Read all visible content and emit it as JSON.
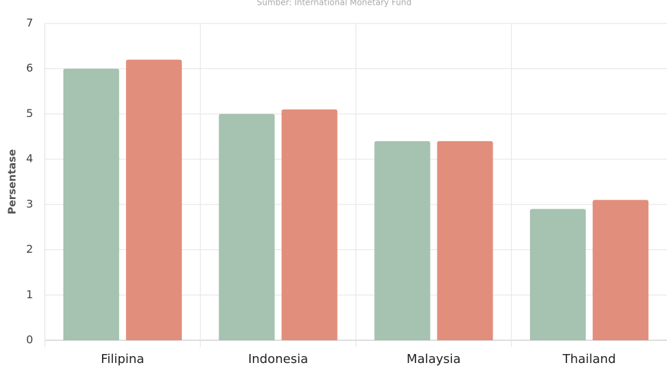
{
  "chart_data": {
    "type": "bar",
    "subtitle": "Sumber: International Monetary Fund",
    "y_label": "Persentase",
    "categories": [
      "Filipina",
      "Indonesia",
      "Malaysia",
      "Thailand"
    ],
    "series": [
      {
        "color": "#a6c2b1",
        "values": [
          6.0,
          5.0,
          4.4,
          2.9
        ]
      },
      {
        "color": "#e28e7c",
        "values": [
          6.2,
          5.1,
          4.4,
          3.1
        ]
      }
    ],
    "ylim": [
      0,
      7
    ],
    "yticks": [
      0,
      1,
      2,
      3,
      4,
      5,
      6,
      7
    ],
    "grid": true
  }
}
